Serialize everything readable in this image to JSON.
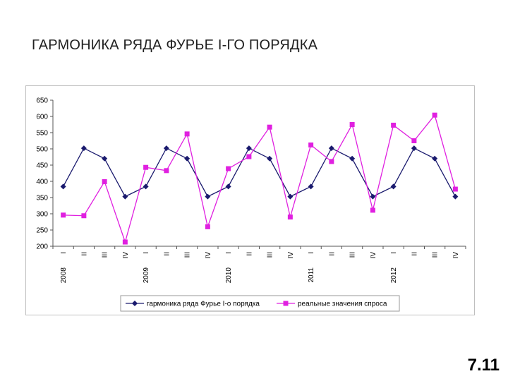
{
  "slide": {
    "title": "ГАРМОНИКА РЯДА ФУРЬЕ I-ГО ПОРЯДКА",
    "number": "7.11"
  },
  "chart_data": {
    "type": "line",
    "categories": [
      "I",
      "II",
      "III",
      "IV",
      "I",
      "II",
      "III",
      "IV",
      "I",
      "II",
      "III",
      "IV",
      "I",
      "II",
      "III",
      "IV",
      "I",
      "II",
      "III",
      "IV"
    ],
    "years": [
      {
        "label": "2008",
        "index": 0
      },
      {
        "label": "2009",
        "index": 4
      },
      {
        "label": "2010",
        "index": 8
      },
      {
        "label": "2011",
        "index": 12
      },
      {
        "label": "2012",
        "index": 16
      }
    ],
    "yticks": [
      200,
      250,
      300,
      350,
      400,
      450,
      500,
      550,
      600,
      650
    ],
    "ylim": [
      200,
      650
    ],
    "grid": false,
    "legend_position": "bottom",
    "series": [
      {
        "name": "гармоника ряда Фурье I-о порядка",
        "color": "#1a1a6e",
        "marker": "diamond",
        "values": [
          384,
          502,
          470,
          353,
          384,
          502,
          470,
          353,
          384,
          502,
          470,
          353,
          384,
          502,
          470,
          353,
          384,
          502,
          470,
          353
        ]
      },
      {
        "name": "реальные значения спроса",
        "color": "#e020e0",
        "marker": "square",
        "values": [
          296,
          294,
          399,
          213,
          443,
          433,
          546,
          260,
          439,
          476,
          567,
          290,
          512,
          461,
          575,
          311,
          573,
          525,
          604,
          376
        ]
      }
    ]
  }
}
